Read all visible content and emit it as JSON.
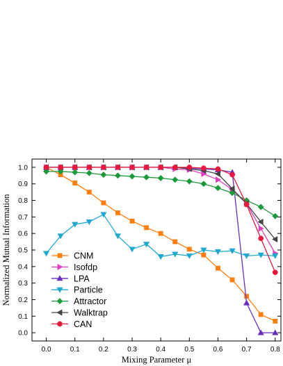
{
  "chart_data": {
    "type": "line",
    "xlabel": "Mixing Parameter μ",
    "ylabel": "Normalized Mutual Information",
    "xlim": [
      -0.05,
      0.82
    ],
    "ylim": [
      -0.05,
      1.05
    ],
    "xticks": [
      0.0,
      0.1,
      0.2,
      0.3,
      0.4,
      0.5,
      0.6,
      0.7,
      0.8
    ],
    "xtick_labels": [
      "0.0",
      "0.1",
      "0.2",
      "0.3",
      "0.4",
      "0.5",
      "0.6",
      "0.7",
      "0.8"
    ],
    "yticks": [
      0.0,
      0.1,
      0.2,
      0.3,
      0.4,
      0.5,
      0.6,
      0.7,
      0.8,
      0.9,
      1.0
    ],
    "ytick_labels": [
      "0.0",
      "0.1",
      "0.2",
      "0.3",
      "0.4",
      "0.5",
      "0.6",
      "0.7",
      "0.8",
      "0.9",
      "1.0"
    ],
    "grid": false,
    "legend_position": "bottom-left",
    "x": [
      0.0,
      0.05,
      0.1,
      0.15,
      0.2,
      0.25,
      0.3,
      0.35,
      0.4,
      0.45,
      0.5,
      0.55,
      0.6,
      0.65,
      0.7,
      0.75,
      0.8
    ],
    "series": [
      {
        "name": "CNM",
        "color": "#ff7f0e",
        "marker": "square",
        "values": [
          1.0,
          0.955,
          0.905,
          0.85,
          0.785,
          0.725,
          0.675,
          0.635,
          0.6,
          0.55,
          0.505,
          0.47,
          0.39,
          0.32,
          0.22,
          0.11,
          0.07
        ]
      },
      {
        "name": "Isofdp",
        "color": "#e040c0",
        "marker": "triangle-right",
        "values": [
          1.0,
          1.0,
          1.0,
          1.0,
          1.0,
          1.0,
          1.0,
          1.0,
          1.0,
          0.99,
          0.985,
          0.96,
          0.925,
          0.865,
          0.78,
          0.63,
          0.48
        ]
      },
      {
        "name": "LPA",
        "color": "#6a2dc0",
        "marker": "triangle-up",
        "values": [
          1.0,
          1.0,
          1.0,
          1.0,
          1.0,
          1.0,
          1.0,
          1.0,
          1.0,
          1.0,
          0.995,
          0.99,
          0.985,
          0.97,
          0.18,
          0.0,
          0.0
        ]
      },
      {
        "name": "Particle",
        "color": "#1fa9d0",
        "marker": "triangle-down",
        "values": [
          0.48,
          0.585,
          0.655,
          0.67,
          0.715,
          0.585,
          0.505,
          0.535,
          0.46,
          0.475,
          0.465,
          0.5,
          0.49,
          0.495,
          0.465,
          0.47,
          0.465
        ]
      },
      {
        "name": "Attractor",
        "color": "#1a9a3a",
        "marker": "diamond",
        "values": [
          0.975,
          0.975,
          0.97,
          0.965,
          0.955,
          0.95,
          0.945,
          0.94,
          0.935,
          0.925,
          0.915,
          0.9,
          0.875,
          0.845,
          0.8,
          0.76,
          0.705
        ]
      },
      {
        "name": "Walktrap",
        "color": "#444444",
        "marker": "triangle-left",
        "values": [
          1.0,
          1.0,
          1.0,
          1.0,
          1.0,
          1.0,
          1.0,
          1.0,
          1.0,
          1.0,
          0.99,
          0.98,
          0.96,
          0.87,
          0.78,
          0.67,
          0.565
        ]
      },
      {
        "name": "CAN",
        "color": "#e8193c",
        "marker": "circle",
        "values": [
          1.0,
          1.0,
          1.0,
          1.0,
          1.0,
          1.0,
          1.0,
          1.0,
          1.0,
          1.0,
          1.0,
          0.995,
          0.99,
          0.955,
          0.775,
          0.57,
          0.365
        ]
      }
    ]
  }
}
